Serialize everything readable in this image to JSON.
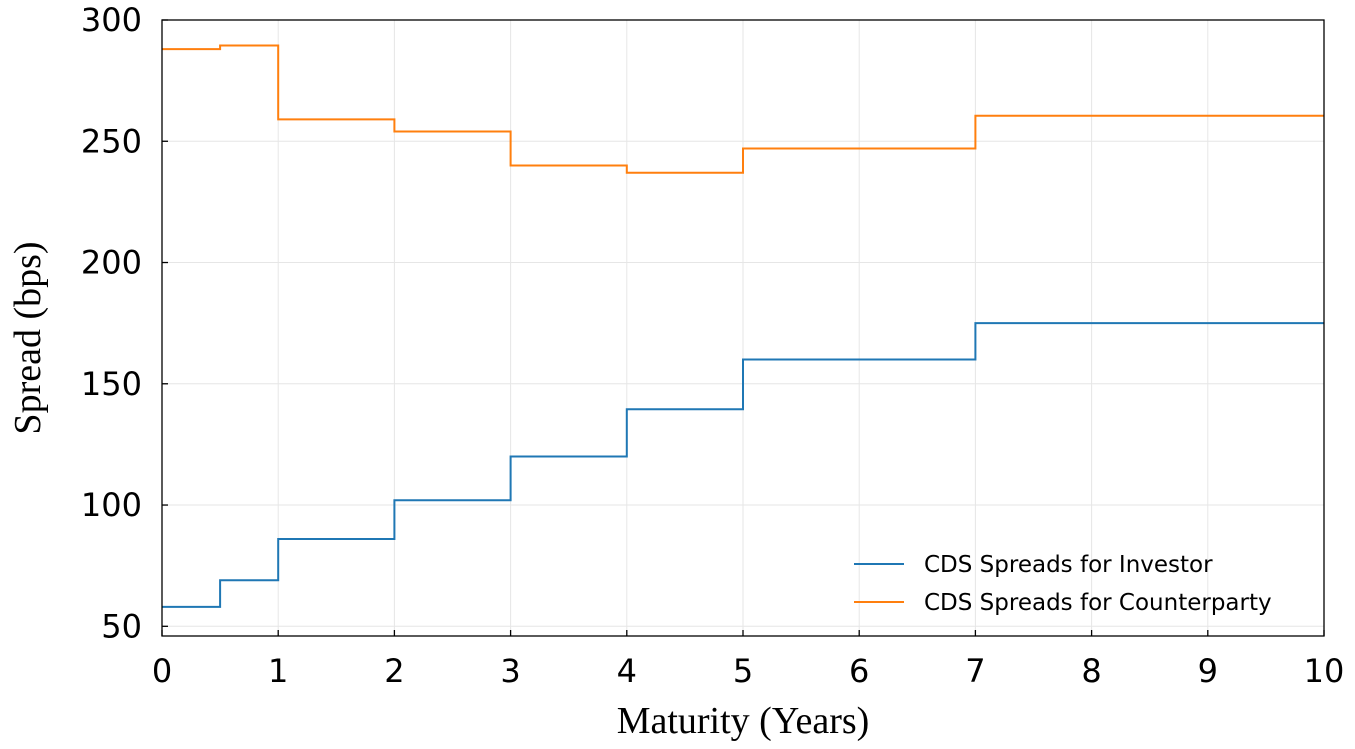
{
  "chart_data": {
    "type": "line",
    "step": "post",
    "xlabel": "Maturity (Years)",
    "ylabel": "Spread (bps)",
    "xlim": [
      0,
      10
    ],
    "ylim": [
      46,
      300
    ],
    "xticks": [
      0,
      1,
      2,
      3,
      4,
      5,
      6,
      7,
      8,
      9,
      10
    ],
    "yticks": [
      50,
      100,
      150,
      200,
      250,
      300
    ],
    "grid": true,
    "legend_position": "lower-right",
    "series": [
      {
        "name": "CDS Spreads for Investor",
        "color": "#1f77b4",
        "x": [
          0,
          0.5,
          1,
          2,
          3,
          4,
          5,
          7,
          10
        ],
        "y": [
          58,
          69,
          86,
          102,
          120,
          139.5,
          160,
          175,
          175
        ]
      },
      {
        "name": "CDS Spreads for Counterparty",
        "color": "#ff7f0e",
        "x": [
          0,
          0.5,
          1,
          2,
          3,
          4,
          5,
          7,
          10
        ],
        "y": [
          288,
          289.5,
          259,
          254,
          240,
          237,
          247,
          260.5,
          260.5
        ]
      }
    ]
  }
}
